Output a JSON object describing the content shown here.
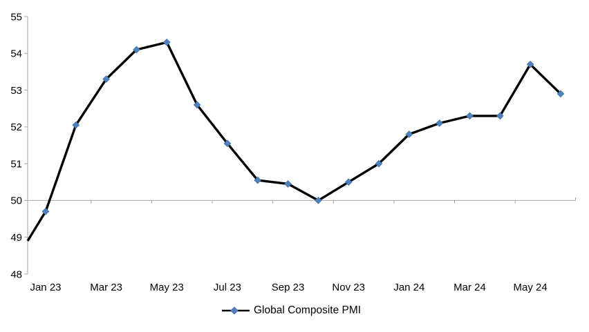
{
  "chart_data": {
    "type": "line",
    "title": "",
    "xlabel": "",
    "ylabel": "",
    "categories": [
      "Jan 23",
      "Feb 23",
      "Mar 23",
      "Apr 23",
      "May 23",
      "Jun 23",
      "Jul 23",
      "Aug 23",
      "Sep 23",
      "Oct 23",
      "Nov 23",
      "Dec 23",
      "Jan 24",
      "Feb 24",
      "Mar 24",
      "Apr 24",
      "May 24",
      "Jun 24"
    ],
    "series": [
      {
        "name": "Global Composite PMI",
        "values": [
          49.7,
          52.05,
          53.3,
          54.1,
          54.3,
          52.6,
          51.55,
          50.55,
          50.45,
          50.0,
          50.5,
          51.0,
          51.8,
          52.1,
          52.3,
          52.3,
          53.7,
          52.9
        ],
        "left_edge_entry_value": 48.9,
        "marker": "diamond"
      }
    ],
    "ylim": [
      48,
      55
    ],
    "y_ticks": [
      55,
      54,
      53,
      52,
      51,
      50,
      49,
      48
    ],
    "x_tick_labels": [
      "Jan 23",
      "Mar 23",
      "May 23",
      "Jul 23",
      "Sep 23",
      "Nov 23",
      "Jan 24",
      "Mar 24",
      "May 24"
    ],
    "axis_cross_value": 50,
    "grid": "none (single horizontal category-axis line at value 50)",
    "legend": {
      "label": "Global Composite PMI",
      "position": "bottom-center"
    }
  },
  "style": {
    "line_color": "#000000",
    "marker_color": "#4F81BD",
    "marker_edge_color": "#44709F",
    "axis_color": "#A6A6A6",
    "label_color": "#000000",
    "background": "#FFFFFF"
  }
}
